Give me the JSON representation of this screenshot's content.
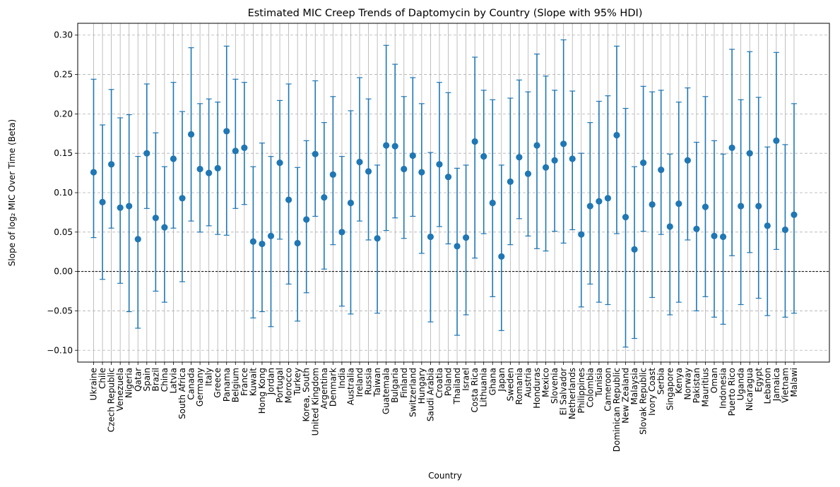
{
  "chart_data": {
    "type": "errorbar",
    "title": "Estimated MIC Creep Trends of Daptomycin by Country (Slope with 95% HDI)",
    "xlabel": "Country",
    "ylabel": "Slope of log₂ MIC Over Time (Beta)",
    "ylim": [
      -0.115,
      0.315
    ],
    "yticks": [
      -0.1,
      -0.05,
      0.0,
      0.05,
      0.1,
      0.15,
      0.2,
      0.25,
      0.3
    ],
    "ytick_labels": [
      "−0.10",
      "−0.05",
      "0.00",
      "0.05",
      "0.10",
      "0.15",
      "0.20",
      "0.25",
      "0.30"
    ],
    "reference_line": 0.0,
    "grid": "x solid, y dashed",
    "colors": {
      "marker": "#1f77b4",
      "errorbar": "#1f77b4",
      "grid": "#b0b0b0",
      "reference": "#000000"
    },
    "categories": [
      "Ukraine",
      "Chile",
      "Czech Republic",
      "Venezuela",
      "Nigeria",
      "Qatar",
      "Spain",
      "Brazil",
      "China",
      "Latvia",
      "South Africa",
      "Canada",
      "Germany",
      "Italy",
      "Greece",
      "Panama",
      "Belgium",
      "France",
      "Kuwait",
      "Hong Kong",
      "Jordan",
      "Portugal",
      "Morocco",
      "Turkey",
      "Korea, South",
      "United Kingdom",
      "Argentina",
      "Denmark",
      "India",
      "Australia",
      "Ireland",
      "Russia",
      "Taiwan",
      "Guatemala",
      "Bulgaria",
      "Finland",
      "Switzerland",
      "Hungary",
      "Saudi Arabia",
      "Croatia",
      "Poland",
      "Thailand",
      "Israel",
      "Costa Rica",
      "Lithuania",
      "Ghana",
      "Japan",
      "Sweden",
      "Romania",
      "Austria",
      "Honduras",
      "Mexico",
      "Slovenia",
      "El Salvador",
      "Netherlands",
      "Philippines",
      "Colombia",
      "Tunisia",
      "Cameroon",
      "Dominican Republic",
      "New Zealand",
      "Malaysia",
      "Slovak Republic",
      "Ivory Coast",
      "Serbia",
      "Singapore",
      "Kenya",
      "Norway",
      "Pakistan",
      "Mauritius",
      "Oman",
      "Indonesia",
      "Puerto Rico",
      "Uganda",
      "Nicaragua",
      "Egypt",
      "Lebanon",
      "Jamaica",
      "Vietnam",
      "Malawi"
    ],
    "values": [
      0.126,
      0.088,
      0.136,
      0.081,
      0.083,
      0.041,
      0.15,
      0.068,
      0.056,
      0.143,
      0.093,
      0.174,
      0.13,
      0.125,
      0.131,
      0.178,
      0.153,
      0.157,
      0.038,
      0.035,
      0.045,
      0.138,
      0.091,
      0.036,
      0.066,
      0.149,
      0.094,
      0.123,
      0.05,
      0.087,
      0.139,
      0.127,
      0.042,
      0.16,
      0.159,
      0.13,
      0.147,
      0.126,
      0.044,
      0.136,
      0.12,
      0.032,
      0.043,
      0.165,
      0.146,
      0.087,
      0.019,
      0.114,
      0.145,
      0.124,
      0.16,
      0.132,
      0.141,
      0.162,
      0.143,
      0.047,
      0.083,
      0.089,
      0.093,
      0.173,
      0.069,
      0.028,
      0.138,
      0.085,
      0.129,
      0.057,
      0.086,
      0.141,
      0.054,
      0.082,
      0.045,
      0.044,
      0.157,
      0.083,
      0.15,
      0.083,
      0.058,
      0.166,
      0.053,
      0.072
    ],
    "lower": [
      0.043,
      -0.01,
      0.055,
      -0.015,
      -0.051,
      -0.072,
      0.08,
      -0.025,
      -0.039,
      0.055,
      -0.013,
      0.064,
      0.05,
      0.058,
      0.047,
      0.046,
      0.08,
      0.085,
      -0.059,
      -0.051,
      -0.07,
      0.041,
      -0.016,
      -0.063,
      -0.027,
      0.07,
      0.003,
      0.034,
      -0.044,
      -0.054,
      0.064,
      0.04,
      -0.053,
      0.052,
      0.068,
      0.042,
      0.07,
      0.023,
      -0.064,
      0.057,
      0.035,
      -0.081,
      -0.055,
      0.017,
      0.048,
      -0.032,
      -0.075,
      0.034,
      0.067,
      0.045,
      0.029,
      0.026,
      0.051,
      0.036,
      0.053,
      -0.045,
      -0.016,
      -0.039,
      -0.042,
      0.048,
      -0.096,
      -0.085,
      0.051,
      -0.033,
      0.047,
      -0.055,
      -0.039,
      0.04,
      -0.05,
      -0.032,
      -0.058,
      -0.067,
      0.02,
      -0.042,
      0.024,
      -0.034,
      -0.056,
      0.028,
      -0.058,
      -0.053
    ],
    "upper": [
      0.244,
      0.186,
      0.231,
      0.195,
      0.199,
      0.146,
      0.238,
      0.176,
      0.133,
      0.24,
      0.203,
      0.284,
      0.213,
      0.219,
      0.215,
      0.286,
      0.244,
      0.24,
      0.133,
      0.163,
      0.146,
      0.217,
      0.238,
      0.132,
      0.166,
      0.242,
      0.189,
      0.222,
      0.146,
      0.204,
      0.246,
      0.219,
      0.135,
      0.287,
      0.263,
      0.222,
      0.246,
      0.213,
      0.151,
      0.24,
      0.227,
      0.131,
      0.135,
      0.272,
      0.23,
      0.218,
      0.135,
      0.22,
      0.243,
      0.228,
      0.276,
      0.248,
      0.23,
      0.294,
      0.229,
      0.15,
      0.189,
      0.216,
      0.223,
      0.286,
      0.207,
      0.133,
      0.235,
      0.228,
      0.23,
      0.149,
      0.215,
      0.233,
      0.164,
      0.222,
      0.166,
      0.149,
      0.282,
      0.218,
      0.279,
      0.221,
      0.158,
      0.278,
      0.161,
      0.213
    ]
  }
}
